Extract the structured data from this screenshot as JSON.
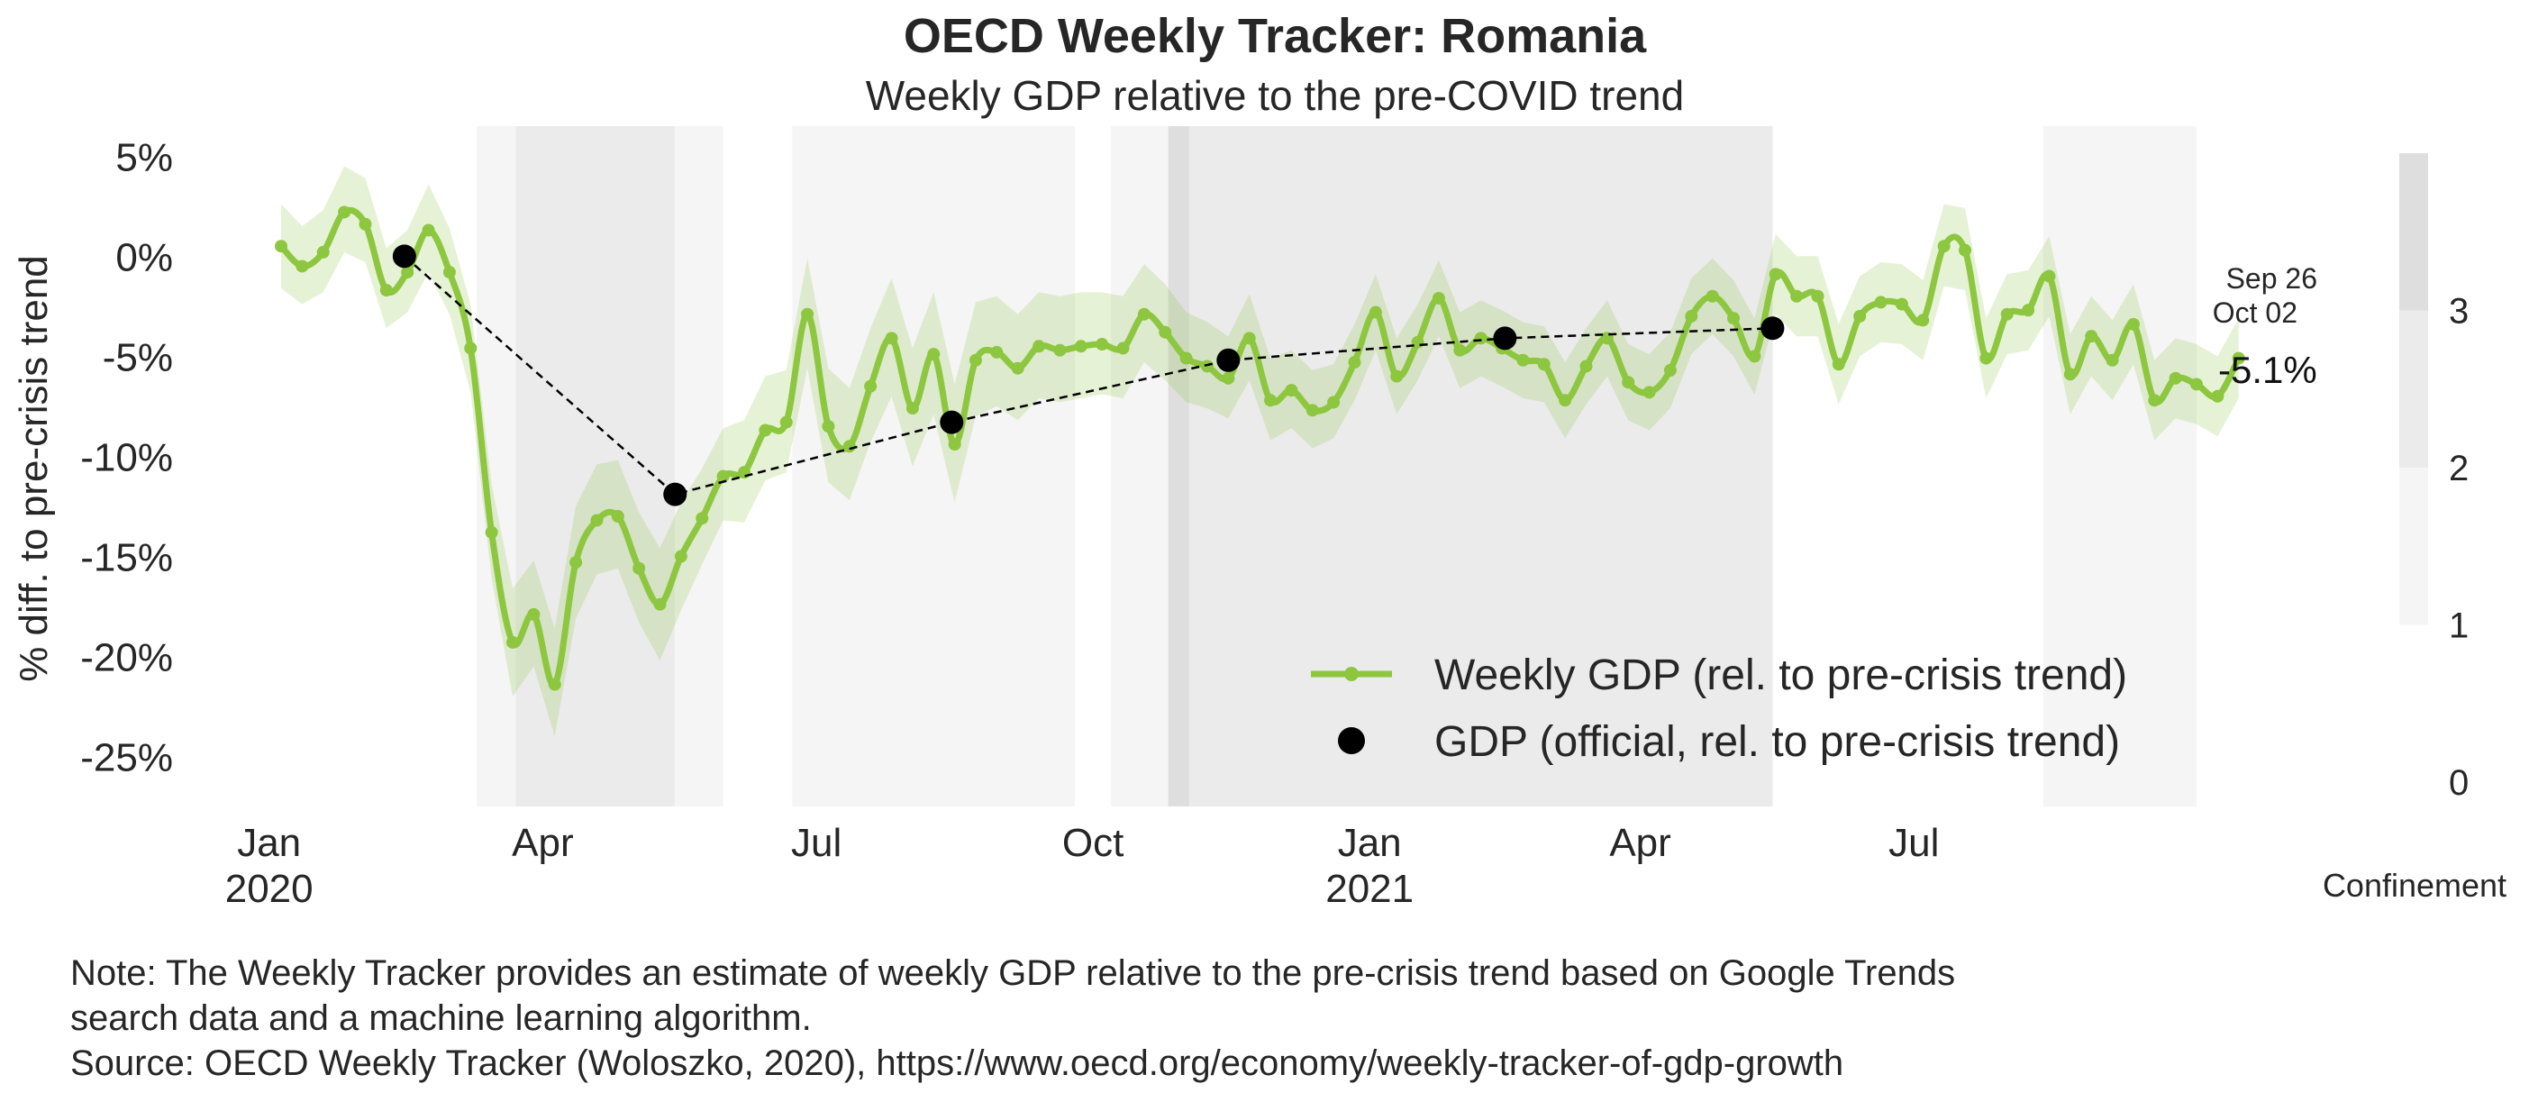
{
  "chart_data": {
    "type": "line",
    "title": "OECD Weekly Tracker: Romania",
    "subtitle": "Weekly GDP relative to the pre-COVID trend",
    "ylabel": "% diff. to pre-crisis trend",
    "ylim": [
      -27.5,
      6.5
    ],
    "y_ticks": [
      5,
      0,
      -5,
      -10,
      -15,
      -20,
      -25
    ],
    "y_tick_labels": [
      "5%",
      "0%",
      "-5%",
      "-10%",
      "-15%",
      "-20%",
      "-25%"
    ],
    "x_range": [
      "2019-12-30",
      "2021-10-03"
    ],
    "x_ticks": [
      {
        "date": "2020-01-01",
        "label": "Jan",
        "year": "2020"
      },
      {
        "date": "2020-04-01",
        "label": "Apr",
        "year": ""
      },
      {
        "date": "2020-07-01",
        "label": "Jul",
        "year": ""
      },
      {
        "date": "2020-10-01",
        "label": "Oct",
        "year": ""
      },
      {
        "date": "2021-01-01",
        "label": "Jan",
        "year": "2021"
      },
      {
        "date": "2021-04-01",
        "label": "Apr",
        "year": ""
      },
      {
        "date": "2021-07-01",
        "label": "Jul",
        "year": ""
      }
    ],
    "series": [
      {
        "name": "Weekly GDP (rel. to pre-crisis trend)",
        "color": "#8dc63f",
        "start_date": "2020-01-05",
        "interval_days": 7,
        "values": [
          0.5,
          -0.5,
          0.2,
          2.2,
          1.6,
          -1.7,
          -0.8,
          1.3,
          -0.8,
          -4.6,
          -13.8,
          -19.3,
          -17.9,
          -21.4,
          -15.3,
          -13.2,
          -13.0,
          -15.6,
          -17.4,
          -15.0,
          -13.1,
          -11.0,
          -10.8,
          -8.7,
          -8.3,
          -2.9,
          -8.5,
          -9.5,
          -6.5,
          -4.1,
          -7.6,
          -4.9,
          -9.4,
          -5.2,
          -4.8,
          -5.6,
          -4.5,
          -4.7,
          -4.5,
          -4.4,
          -4.6,
          -2.9,
          -3.8,
          -5.1,
          -5.5,
          -6.1,
          -4.1,
          -7.2,
          -6.7,
          -7.7,
          -7.3,
          -5.3,
          -2.8,
          -6.0,
          -4.3,
          -2.1,
          -4.7,
          -4.1,
          -4.6,
          -5.2,
          -5.4,
          -7.2,
          -5.5,
          -4.1,
          -6.3,
          -6.8,
          -5.7,
          -3.0,
          -2.0,
          -3.1,
          -5.0,
          -0.9,
          -2.0,
          -2.0,
          -5.4,
          -3.0,
          -2.3,
          -2.4,
          -3.2,
          0.5,
          0.3,
          -5.1,
          -2.9,
          -2.7,
          -1.0,
          -5.9,
          -4.0,
          -5.2,
          -3.4,
          -7.2,
          -6.1,
          -6.4,
          -7.0,
          -5.1
        ],
        "band_lower": [
          -1.6,
          -2.4,
          -1.8,
          0.2,
          -0.3,
          -3.6,
          -2.8,
          -0.8,
          -2.9,
          -6.8,
          -16.1,
          -22.0,
          -20.5,
          -24.0,
          -18.1,
          -15.9,
          -15.6,
          -18.3,
          -20.2,
          -17.7,
          -15.4,
          -13.2,
          -13.3,
          -11.2,
          -10.8,
          -5.6,
          -11.3,
          -12.2,
          -9.3,
          -7.0,
          -10.5,
          -7.9,
          -12.3,
          -8.0,
          -7.5,
          -8.2,
          -7.1,
          -7.3,
          -7.1,
          -6.9,
          -7.1,
          -5.3,
          -6.2,
          -7.3,
          -7.6,
          -8.1,
          -6.2,
          -9.2,
          -8.6,
          -9.6,
          -9.1,
          -7.2,
          -4.7,
          -7.9,
          -6.2,
          -4.0,
          -6.6,
          -6.0,
          -6.5,
          -7.1,
          -7.3,
          -9.1,
          -7.4,
          -6.0,
          -8.2,
          -8.7,
          -7.6,
          -4.9,
          -3.9,
          -5.0,
          -6.9,
          -2.9,
          -4.0,
          -4.0,
          -7.4,
          -5.0,
          -4.3,
          -4.4,
          -5.2,
          -1.5,
          -1.7,
          -7.1,
          -4.9,
          -4.7,
          -3.0,
          -7.9,
          -6.0,
          -7.2,
          -5.4,
          -9.2,
          -8.1,
          -8.4,
          -9.0,
          -7.1
        ],
        "band_upper": [
          2.6,
          1.5,
          2.3,
          4.5,
          3.9,
          0.4,
          1.3,
          3.6,
          1.4,
          -2.4,
          -11.4,
          -16.6,
          -15.2,
          -18.6,
          -12.5,
          -10.4,
          -10.2,
          -12.8,
          -14.6,
          -12.3,
          -10.6,
          -8.6,
          -8.2,
          -6.0,
          -5.7,
          -0.1,
          -5.6,
          -6.6,
          -3.6,
          -1.1,
          -4.6,
          -1.8,
          -6.4,
          -2.3,
          -2.0,
          -2.9,
          -1.8,
          -2.0,
          -1.8,
          -1.8,
          -2.0,
          -0.4,
          -1.4,
          -2.8,
          -3.3,
          -4.0,
          -1.9,
          -5.1,
          -4.7,
          -5.7,
          -5.4,
          -3.4,
          -0.9,
          -4.1,
          -2.4,
          -0.2,
          -2.8,
          -2.2,
          -2.7,
          -3.3,
          -3.5,
          -5.3,
          -3.6,
          -2.2,
          -4.4,
          -4.9,
          -3.8,
          -1.1,
          -0.1,
          -1.2,
          -3.1,
          1.1,
          0.0,
          0.0,
          -3.4,
          -1.0,
          -0.3,
          -0.4,
          -1.2,
          2.6,
          2.4,
          -3.1,
          -0.9,
          -0.7,
          1.0,
          -3.9,
          -2.0,
          -3.2,
          -1.4,
          -5.2,
          -4.1,
          -4.4,
          -5.0,
          -3.1
        ]
      },
      {
        "name": "GDP (official, rel. to pre-crisis trend)",
        "color": "#000000",
        "points": [
          {
            "date": "2020-02-15",
            "value": 0.0
          },
          {
            "date": "2020-05-15",
            "value": -11.9
          },
          {
            "date": "2020-08-15",
            "value": -8.3
          },
          {
            "date": "2020-11-15",
            "value": -5.2
          },
          {
            "date": "2021-02-15",
            "value": -4.1
          },
          {
            "date": "2021-05-15",
            "value": -3.6
          }
        ]
      }
    ],
    "confinement_shading": [
      {
        "start": "2020-03-10",
        "end": "2020-03-23",
        "level": 1
      },
      {
        "start": "2020-03-23",
        "end": "2020-05-15",
        "level": 2
      },
      {
        "start": "2020-05-15",
        "end": "2020-05-31",
        "level": 1
      },
      {
        "start": "2020-06-23",
        "end": "2020-09-25",
        "level": 1
      },
      {
        "start": "2020-10-07",
        "end": "2020-10-26",
        "level": 1
      },
      {
        "start": "2020-10-26",
        "end": "2020-11-02",
        "level": 3
      },
      {
        "start": "2020-11-02",
        "end": "2021-05-15",
        "level": 2
      },
      {
        "start": "2021-08-13",
        "end": "2021-10-03",
        "level": 1
      }
    ],
    "colorbar": {
      "label": "Confinement",
      "ticks": [
        "0",
        "1",
        "2",
        "3"
      ],
      "levels": [
        {
          "level": 1,
          "color": "#f5f5f5"
        },
        {
          "level": 2,
          "color": "#ebebeb"
        },
        {
          "level": 3,
          "color": "#dedede"
        }
      ]
    },
    "annotations": {
      "date_top": "Sep 26",
      "date_bottom": "Oct 02",
      "last_value": "-5.1%"
    },
    "legend_position": "lower-right",
    "grid": false
  },
  "note": {
    "line1": "Note: The Weekly Tracker provides an estimate of weekly GDP relative to the pre-crisis trend based on Google Trends",
    "line2": "search data and a machine learning algorithm.",
    "line3": "Source: OECD Weekly Tracker (Woloszko, 2020), https://www.oecd.org/economy/weekly-tracker-of-gdp-growth"
  }
}
